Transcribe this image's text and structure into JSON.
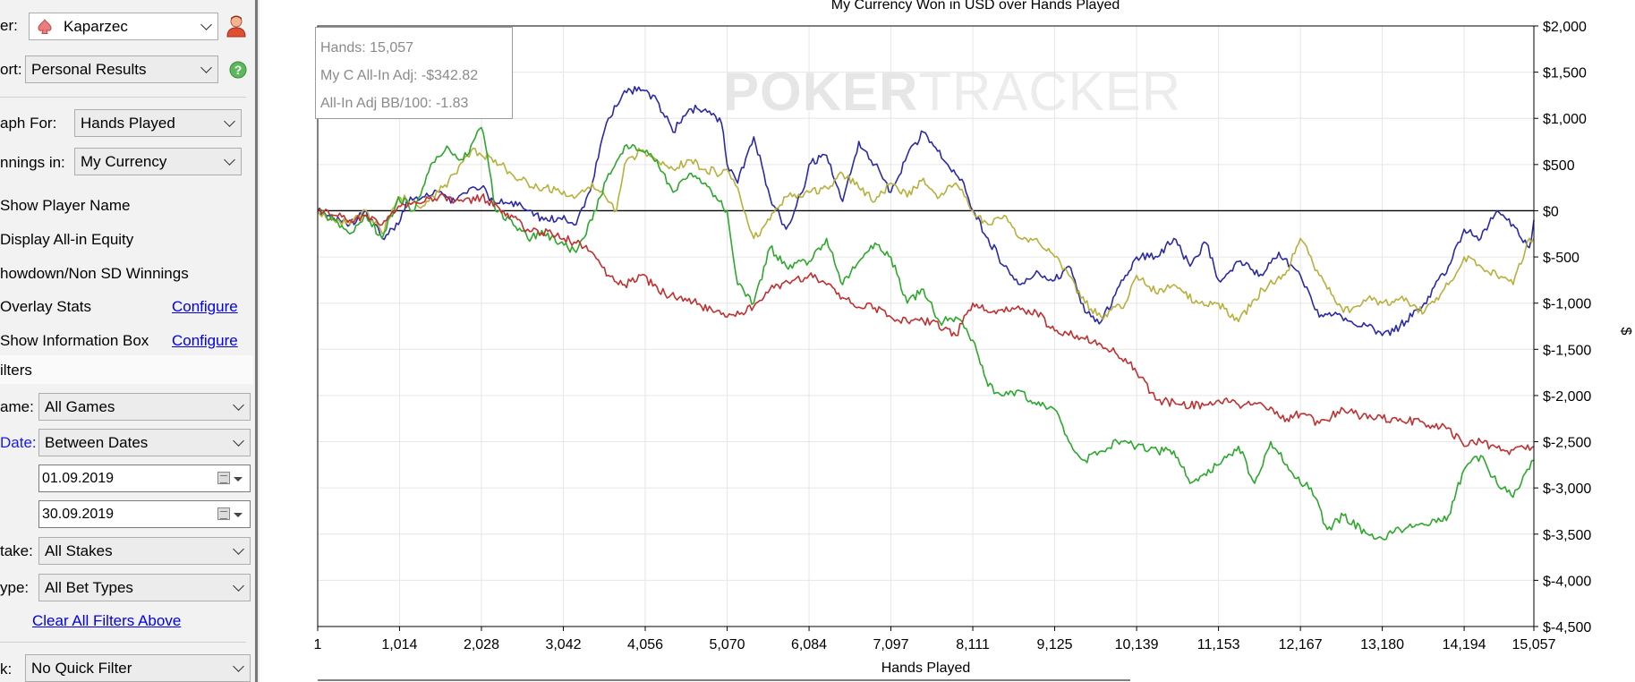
{
  "left_panel": {
    "player_label": "er:",
    "player_value": "Kaparzec",
    "report_label": "ort:",
    "report_value": "Personal Results",
    "graph_for_label": "aph For:",
    "graph_for_value": "Hands Played",
    "winnings_label": "nnings in:",
    "winnings_value": "My Currency",
    "options": [
      "Show Player Name",
      "Display All-in Equity",
      "howdown/Non SD Winnings",
      "Overlay Stats",
      "Show Information Box"
    ],
    "configure_label": "Configure",
    "filters_header": "ilters",
    "game_label": "ame:",
    "game_value": "All Games",
    "date_label": "Date:",
    "date_value": "Between Dates",
    "date_from": "01.09.2019",
    "date_to": "30.09.2019",
    "stake_label": "take:",
    "stake_value": "All Stakes",
    "type_label": "ype:",
    "type_value": "All Bet Types",
    "clear_filters": "Clear All Filters Above",
    "quick_label": "k:",
    "quick_value": "No Quick Filter"
  },
  "info_box": {
    "hands": "Hands: 15,057",
    "all_in_adj": "My C All-In Adj: -$342.82",
    "bb100": "All-In Adj BB/100: -1.83"
  },
  "watermark": {
    "part1": "POKER",
    "part2": "TRACKER"
  },
  "chart_data": {
    "type": "line",
    "title": "My Currency Won in USD over Hands Played",
    "xlabel": "Hands Played",
    "ylabel": "$",
    "xlim": [
      1,
      15057
    ],
    "ylim": [
      -4500,
      2000
    ],
    "x_ticks": [
      1,
      1014,
      2028,
      3042,
      4056,
      5070,
      6084,
      7097,
      8111,
      9125,
      10139,
      11153,
      12167,
      13180,
      14194,
      15057
    ],
    "x_tick_labels": [
      "1",
      "1,014",
      "2,028",
      "3,042",
      "4,056",
      "5,070",
      "6,084",
      "7,097",
      "8,111",
      "9,125",
      "10,139",
      "11,153",
      "12,167",
      "13,180",
      "14,194",
      "15,057"
    ],
    "y_ticks": [
      2000,
      1500,
      1000,
      500,
      0,
      -500,
      -1000,
      -1500,
      -2000,
      -2500,
      -3000,
      -3500,
      -4000,
      -4500
    ],
    "y_tick_labels": [
      "$2,000",
      "$1,500",
      "$1,000",
      "$500",
      "$0",
      "$-500",
      "$-1,000",
      "$-1,500",
      "$-2,000",
      "$-2,500",
      "$-3,000",
      "$-3,500",
      "$-4,000",
      "$-4,500"
    ],
    "grid": true,
    "series": [
      {
        "color": "#2a2aa8",
        "x": [
          1,
          200,
          400,
          600,
          800,
          1000,
          1100,
          1300,
          1500,
          1700,
          1900,
          2028,
          2200,
          2400,
          2600,
          2800,
          3000,
          3200,
          3400,
          3500,
          3600,
          3800,
          4000,
          4200,
          4400,
          4600,
          4800,
          5000,
          5070,
          5200,
          5400,
          5600,
          5800,
          6000,
          6084,
          6300,
          6500,
          6700,
          6900,
          7097,
          7300,
          7500,
          7800,
          8000,
          8111,
          8300,
          8500,
          8700,
          8900,
          9125,
          9300,
          9500,
          9700,
          10000,
          10139,
          10400,
          10600,
          10800,
          11000,
          11153,
          11400,
          11700,
          11900,
          12167,
          12400,
          12600,
          12800,
          13000,
          13180,
          13400,
          13700,
          14000,
          14194,
          14400,
          14600,
          14800,
          15000,
          15057
        ],
        "y": [
          0,
          -80,
          -150,
          0,
          -300,
          -150,
          100,
          150,
          200,
          100,
          250,
          250,
          80,
          100,
          0,
          -100,
          -80,
          -150,
          300,
          700,
          1000,
          1300,
          1300,
          1200,
          850,
          1100,
          1100,
          950,
          500,
          300,
          800,
          150,
          -200,
          200,
          500,
          600,
          100,
          750,
          500,
          200,
          600,
          850,
          500,
          300,
          0,
          -300,
          -600,
          -800,
          -650,
          -750,
          -600,
          -1100,
          -1200,
          -700,
          -500,
          -500,
          -300,
          -600,
          -350,
          -750,
          -550,
          -700,
          -450,
          -700,
          -1150,
          -1100,
          -1200,
          -1250,
          -1350,
          -1250,
          -1000,
          -600,
          -200,
          -300,
          0,
          -150,
          -400,
          -100
        ]
      },
      {
        "color": "#b8b03c",
        "x": [
          1,
          200,
          400,
          600,
          800,
          1000,
          1300,
          1500,
          1700,
          1900,
          2028,
          2200,
          2400,
          2600,
          2800,
          3000,
          3200,
          3400,
          3500,
          3700,
          3800,
          4000,
          4200,
          4400,
          4600,
          4800,
          5000,
          5070,
          5200,
          5400,
          5600,
          5800,
          6084,
          6300,
          6500,
          6700,
          6900,
          7097,
          7300,
          7500,
          7700,
          7900,
          8111,
          8300,
          8500,
          8700,
          8900,
          9125,
          9300,
          9500,
          9700,
          10000,
          10139,
          10400,
          10600,
          10900,
          11153,
          11400,
          11700,
          12000,
          12167,
          12400,
          12700,
          13000,
          13180,
          13400,
          13700,
          14000,
          14194,
          14400,
          14600,
          14800,
          15000,
          15057
        ],
        "y": [
          0,
          -100,
          -150,
          0,
          -250,
          150,
          50,
          200,
          400,
          650,
          600,
          550,
          400,
          300,
          250,
          200,
          150,
          300,
          200,
          0,
          500,
          650,
          550,
          450,
          550,
          450,
          400,
          450,
          250,
          -300,
          -100,
          150,
          200,
          250,
          400,
          250,
          100,
          300,
          150,
          350,
          150,
          300,
          0,
          -150,
          -50,
          -300,
          -300,
          -500,
          -700,
          -1000,
          -1150,
          -1000,
          -700,
          -900,
          -800,
          -1000,
          -1000,
          -1200,
          -850,
          -650,
          -300,
          -700,
          -1100,
          -950,
          -1000,
          -950,
          -1100,
          -800,
          -500,
          -600,
          -700,
          -800,
          -300,
          -300
        ]
      },
      {
        "color": "#2ca82c",
        "x": [
          1,
          200,
          400,
          600,
          800,
          1000,
          1200,
          1400,
          1600,
          1800,
          2028,
          2100,
          2200,
          2400,
          2600,
          2800,
          3000,
          3200,
          3400,
          3600,
          3800,
          4000,
          4200,
          4400,
          4600,
          4800,
          5070,
          5200,
          5400,
          5600,
          5800,
          6084,
          6300,
          6500,
          6700,
          6900,
          7097,
          7300,
          7500,
          7700,
          7900,
          8111,
          8300,
          8500,
          8700,
          8900,
          9125,
          9300,
          9500,
          9700,
          9900,
          10139,
          10400,
          10600,
          10800,
          11153,
          11400,
          11600,
          11800,
          12000,
          12167,
          12300,
          12500,
          12700,
          13000,
          13180,
          13400,
          13700,
          14000,
          14194,
          14400,
          14600,
          14800,
          15000,
          15057
        ],
        "y": [
          0,
          -100,
          -250,
          -50,
          -300,
          150,
          0,
          500,
          700,
          550,
          900,
          600,
          0,
          -100,
          -300,
          -250,
          -350,
          -450,
          -100,
          400,
          700,
          650,
          550,
          200,
          400,
          300,
          0,
          -800,
          -1000,
          -400,
          -600,
          -550,
          -300,
          -800,
          -550,
          -350,
          -500,
          -1000,
          -850,
          -1200,
          -1150,
          -1400,
          -1900,
          -2000,
          -1950,
          -2100,
          -2150,
          -2500,
          -2700,
          -2600,
          -2500,
          -2550,
          -2600,
          -2600,
          -2950,
          -2750,
          -2550,
          -2950,
          -2500,
          -2750,
          -2950,
          -3000,
          -3450,
          -3300,
          -3500,
          -3550,
          -3450,
          -3400,
          -3300,
          -2800,
          -2650,
          -2950,
          -3100,
          -2800,
          -2700
        ]
      },
      {
        "color": "#c03030",
        "x": [
          1,
          200,
          400,
          600,
          800,
          1000,
          1200,
          1500,
          1800,
          2028,
          2300,
          2600,
          2900,
          3200,
          3400,
          3600,
          3800,
          4000,
          4300,
          4600,
          4900,
          5070,
          5300,
          5600,
          5900,
          6084,
          6300,
          6600,
          6900,
          7097,
          7300,
          7600,
          7900,
          8111,
          8300,
          8600,
          8900,
          9125,
          9400,
          9700,
          10000,
          10139,
          10400,
          10700,
          11000,
          11153,
          11400,
          11700,
          12000,
          12167,
          12400,
          12700,
          13000,
          13180,
          13400,
          13700,
          14000,
          14194,
          14400,
          14700,
          15057
        ],
        "y": [
          0,
          -50,
          -100,
          -50,
          -150,
          50,
          100,
          150,
          100,
          150,
          0,
          -200,
          -250,
          -350,
          -450,
          -700,
          -800,
          -700,
          -900,
          -950,
          -1100,
          -1150,
          -1100,
          -850,
          -750,
          -700,
          -800,
          -1000,
          -1050,
          -1150,
          -1200,
          -1200,
          -1350,
          -1000,
          -1100,
          -1050,
          -1100,
          -1300,
          -1350,
          -1450,
          -1600,
          -1750,
          -2050,
          -2100,
          -2100,
          -2050,
          -2100,
          -2100,
          -2250,
          -2200,
          -2300,
          -2150,
          -2250,
          -2250,
          -2250,
          -2300,
          -2350,
          -2550,
          -2500,
          -2600,
          -2550
        ]
      }
    ]
  }
}
